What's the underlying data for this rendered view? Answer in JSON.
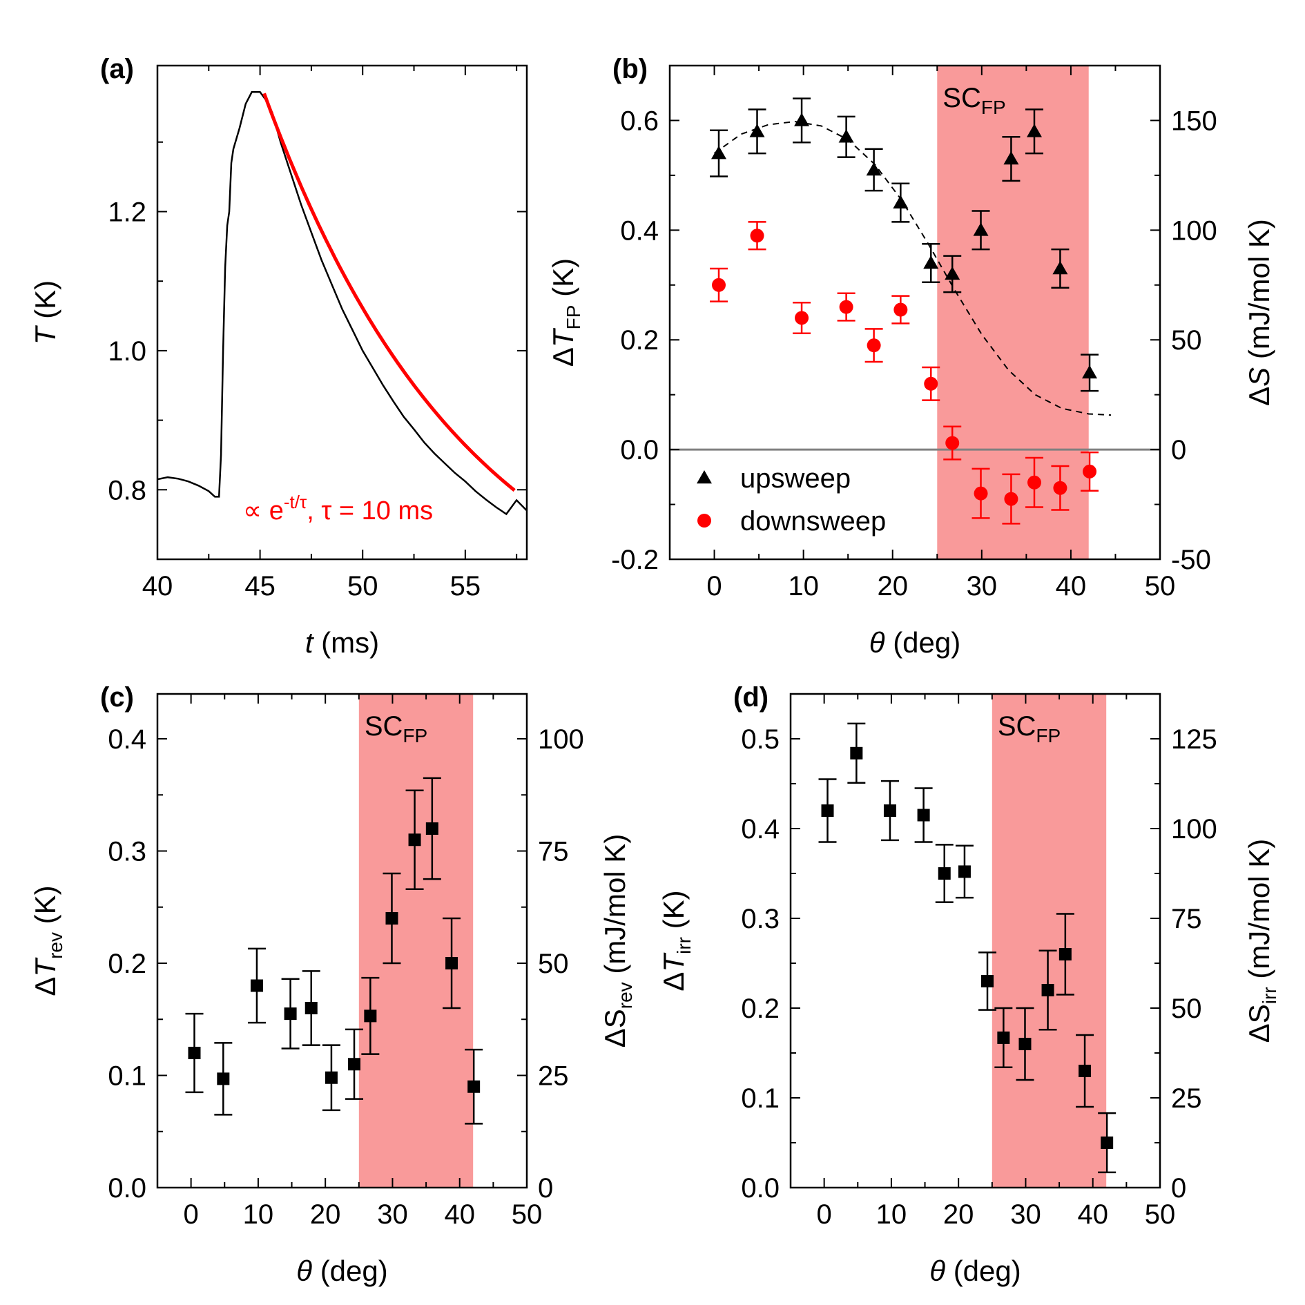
{
  "colors": {
    "shade": "#f99a9a",
    "red": "#ff0000",
    "black": "#000000",
    "zero_line": "#808080"
  },
  "chart_data": [
    {
      "panel": "(a)",
      "type": "line",
      "xlabel_italic": "t",
      "xlabel_unit": " (ms)",
      "ylabel_italic": "T",
      "ylabel_unit": " (K)",
      "xlim": [
        40,
        58
      ],
      "ylim": [
        0.7,
        1.41
      ],
      "xticks": [
        40,
        45,
        50,
        55
      ],
      "xtick_labels": [
        "40",
        "45",
        "50",
        "55"
      ],
      "yticks": [
        0.8,
        1.0,
        1.2
      ],
      "ytick_labels": [
        "0.8",
        "1.0",
        "1.2"
      ],
      "series": [
        {
          "name": "measured T(t)",
          "color": "#000000",
          "x": [
            40.0,
            40.5,
            41.0,
            41.5,
            42.0,
            42.5,
            42.8,
            43.0,
            43.1,
            43.2,
            43.3,
            43.4,
            43.5,
            43.6,
            43.7,
            44.0,
            44.3,
            44.6,
            45.0,
            45.3,
            45.6,
            46.0,
            46.5,
            47.0,
            47.5,
            48.0,
            48.5,
            49.0,
            49.5,
            50.0,
            50.5,
            51.0,
            51.5,
            52.0,
            52.5,
            53.0,
            53.5,
            54.0,
            54.5,
            55.0,
            55.5,
            56.0,
            56.5,
            57.0,
            57.5,
            58.0
          ],
          "y": [
            0.815,
            0.818,
            0.816,
            0.812,
            0.806,
            0.798,
            0.79,
            0.79,
            0.85,
            1.0,
            1.12,
            1.18,
            1.2,
            1.27,
            1.29,
            1.32,
            1.355,
            1.372,
            1.372,
            1.36,
            1.342,
            1.3,
            1.255,
            1.21,
            1.17,
            1.13,
            1.095,
            1.06,
            1.03,
            1.0,
            0.975,
            0.95,
            0.927,
            0.905,
            0.887,
            0.868,
            0.852,
            0.838,
            0.824,
            0.812,
            0.798,
            0.786,
            0.775,
            0.765,
            0.785,
            0.77
          ]
        },
        {
          "name": "fit",
          "label": "∝ e",
          "label_sup": "-t/τ",
          "label_rest": ", τ = 10 ms",
          "color": "#ff0000",
          "tau_ms": 10,
          "x_start": 45.2,
          "x_end": 57.4,
          "y_start": 1.37,
          "y_end": 0.807
        }
      ]
    },
    {
      "panel": "(b)",
      "type": "scatter",
      "xlabel_italic": "θ",
      "xlabel_unit": " (deg)",
      "ylabel_pre": "Δ",
      "ylabel_italic": "T",
      "ylabel_sub": "FP",
      "ylabel_unit": " (K)",
      "y2label_pre": "Δ",
      "y2label_italic": "S",
      "y2label_unit": " (mJ/mol K)",
      "xlim": [
        -5,
        50
      ],
      "ylim": [
        -0.2,
        0.7
      ],
      "y2lim": [
        -50,
        175
      ],
      "xticks": [
        0,
        10,
        20,
        30,
        40,
        50
      ],
      "xtick_labels": [
        "0",
        "10",
        "20",
        "30",
        "40",
        "50"
      ],
      "yticks": [
        -0.2,
        0.0,
        0.2,
        0.4,
        0.6
      ],
      "ytick_labels": [
        "-0.2",
        "0.0",
        "0.2",
        "0.4",
        "0.6"
      ],
      "y2ticks": [
        -50,
        0,
        50,
        100,
        150
      ],
      "y2tick_labels": [
        "-50",
        "0",
        "50",
        "100",
        "150"
      ],
      "shaded_region": {
        "x": [
          25,
          42
        ],
        "label": "SC",
        "label_sub": "FP"
      },
      "zero_line": 0.0,
      "legend": [
        {
          "marker": "triangle",
          "color": "#000000",
          "label": "upsweep"
        },
        {
          "marker": "circle",
          "color": "#ff0000",
          "label": "downsweep"
        }
      ],
      "series": [
        {
          "name": "upsweep",
          "marker": "triangle",
          "color": "#000000",
          "x": [
            0.5,
            4.8,
            9.8,
            14.8,
            17.9,
            20.9,
            24.3,
            26.7,
            29.9,
            33.3,
            35.9,
            38.8,
            42.1
          ],
          "y": [
            0.54,
            0.58,
            0.6,
            0.57,
            0.51,
            0.45,
            0.34,
            0.32,
            0.4,
            0.53,
            0.58,
            0.33,
            0.14
          ],
          "err": [
            0.042,
            0.04,
            0.04,
            0.037,
            0.038,
            0.035,
            0.035,
            0.033,
            0.035,
            0.04,
            0.04,
            0.035,
            0.033
          ]
        },
        {
          "name": "downsweep",
          "marker": "circle",
          "color": "#ff0000",
          "x": [
            0.5,
            4.8,
            9.8,
            14.8,
            17.9,
            20.9,
            24.3,
            26.7,
            29.9,
            33.3,
            35.9,
            38.8,
            42.1
          ],
          "y": [
            0.3,
            0.39,
            0.24,
            0.26,
            0.19,
            0.255,
            0.12,
            0.012,
            -0.08,
            -0.09,
            -0.06,
            -0.07,
            -0.04
          ],
          "err": [
            0.03,
            0.025,
            0.028,
            0.025,
            0.03,
            0.025,
            0.03,
            0.03,
            0.045,
            0.045,
            0.045,
            0.04,
            0.035
          ]
        },
        {
          "name": "guide",
          "style": "dashed",
          "color": "#000000",
          "x": [
            0,
            3,
            6,
            9,
            12,
            15,
            18,
            21,
            24,
            27,
            30,
            33,
            36,
            39,
            42,
            44.5
          ],
          "y": [
            0.54,
            0.575,
            0.592,
            0.598,
            0.59,
            0.565,
            0.52,
            0.455,
            0.375,
            0.29,
            0.21,
            0.145,
            0.1,
            0.075,
            0.065,
            0.063
          ]
        }
      ]
    },
    {
      "panel": "(c)",
      "type": "scatter",
      "xlabel_italic": "θ",
      "xlabel_unit": " (deg)",
      "ylabel_pre": "Δ",
      "ylabel_italic": "T",
      "ylabel_sub": "rev",
      "ylabel_unit": " (K)",
      "y2label_pre": "ΔS",
      "y2label_sub": "rev",
      "y2label_unit": " (mJ/mol K)",
      "xlim": [
        -5,
        50
      ],
      "ylim": [
        0,
        0.44
      ],
      "y2lim": [
        0,
        110
      ],
      "xticks": [
        0,
        10,
        20,
        30,
        40,
        50
      ],
      "xtick_labels": [
        "0",
        "10",
        "20",
        "30",
        "40",
        "50"
      ],
      "yticks": [
        0.0,
        0.1,
        0.2,
        0.3,
        0.4
      ],
      "ytick_labels": [
        "0.0",
        "0.1",
        "0.2",
        "0.3",
        "0.4"
      ],
      "y2ticks": [
        0,
        25,
        50,
        75,
        100
      ],
      "y2tick_labels": [
        "0",
        "25",
        "50",
        "75",
        "100"
      ],
      "shaded_region": {
        "x": [
          25,
          42
        ],
        "label": "SC",
        "label_sub": "FP"
      },
      "series": [
        {
          "name": "ΔT_rev",
          "marker": "square",
          "color": "#000000",
          "x": [
            0.5,
            4.8,
            9.8,
            14.8,
            17.9,
            20.9,
            24.3,
            26.7,
            29.9,
            33.3,
            35.9,
            38.8,
            42.1
          ],
          "y": [
            0.12,
            0.097,
            0.18,
            0.155,
            0.16,
            0.098,
            0.11,
            0.153,
            0.24,
            0.31,
            0.32,
            0.2,
            0.09
          ],
          "err": [
            0.035,
            0.032,
            0.033,
            0.031,
            0.033,
            0.029,
            0.031,
            0.034,
            0.04,
            0.044,
            0.045,
            0.04,
            0.033
          ]
        }
      ]
    },
    {
      "panel": "(d)",
      "type": "scatter",
      "xlabel_italic": "θ",
      "xlabel_unit": " (deg)",
      "ylabel_pre": "Δ",
      "ylabel_italic": "T",
      "ylabel_sub": "irr",
      "ylabel_unit": " (K)",
      "y2label_pre": "ΔS",
      "y2label_sub": "irr",
      "y2label_unit": " (mJ/mol K)",
      "xlim": [
        -5,
        50
      ],
      "ylim": [
        0,
        0.55
      ],
      "y2lim": [
        0,
        137.5
      ],
      "xticks": [
        0,
        10,
        20,
        30,
        40,
        50
      ],
      "xtick_labels": [
        "0",
        "10",
        "20",
        "30",
        "40",
        "50"
      ],
      "yticks": [
        0.0,
        0.1,
        0.2,
        0.3,
        0.4,
        0.5
      ],
      "ytick_labels": [
        "0.0",
        "0.1",
        "0.2",
        "0.3",
        "0.4",
        "0.5"
      ],
      "y2ticks": [
        0,
        25,
        50,
        75,
        100,
        125
      ],
      "y2tick_labels": [
        "0",
        "25",
        "50",
        "75",
        "100",
        "125"
      ],
      "shaded_region": {
        "x": [
          25,
          42
        ],
        "label": "SC",
        "label_sub": "FP"
      },
      "series": [
        {
          "name": "ΔT_irr",
          "marker": "square",
          "color": "#000000",
          "x": [
            0.5,
            4.8,
            9.8,
            14.8,
            17.9,
            20.9,
            24.3,
            26.7,
            29.9,
            33.3,
            35.9,
            38.8,
            42.1
          ],
          "y": [
            0.42,
            0.484,
            0.42,
            0.415,
            0.35,
            0.352,
            0.23,
            0.167,
            0.16,
            0.22,
            0.26,
            0.13,
            0.05
          ],
          "err": [
            0.035,
            0.033,
            0.033,
            0.03,
            0.032,
            0.029,
            0.032,
            0.033,
            0.04,
            0.044,
            0.045,
            0.04,
            0.033
          ]
        }
      ]
    }
  ]
}
